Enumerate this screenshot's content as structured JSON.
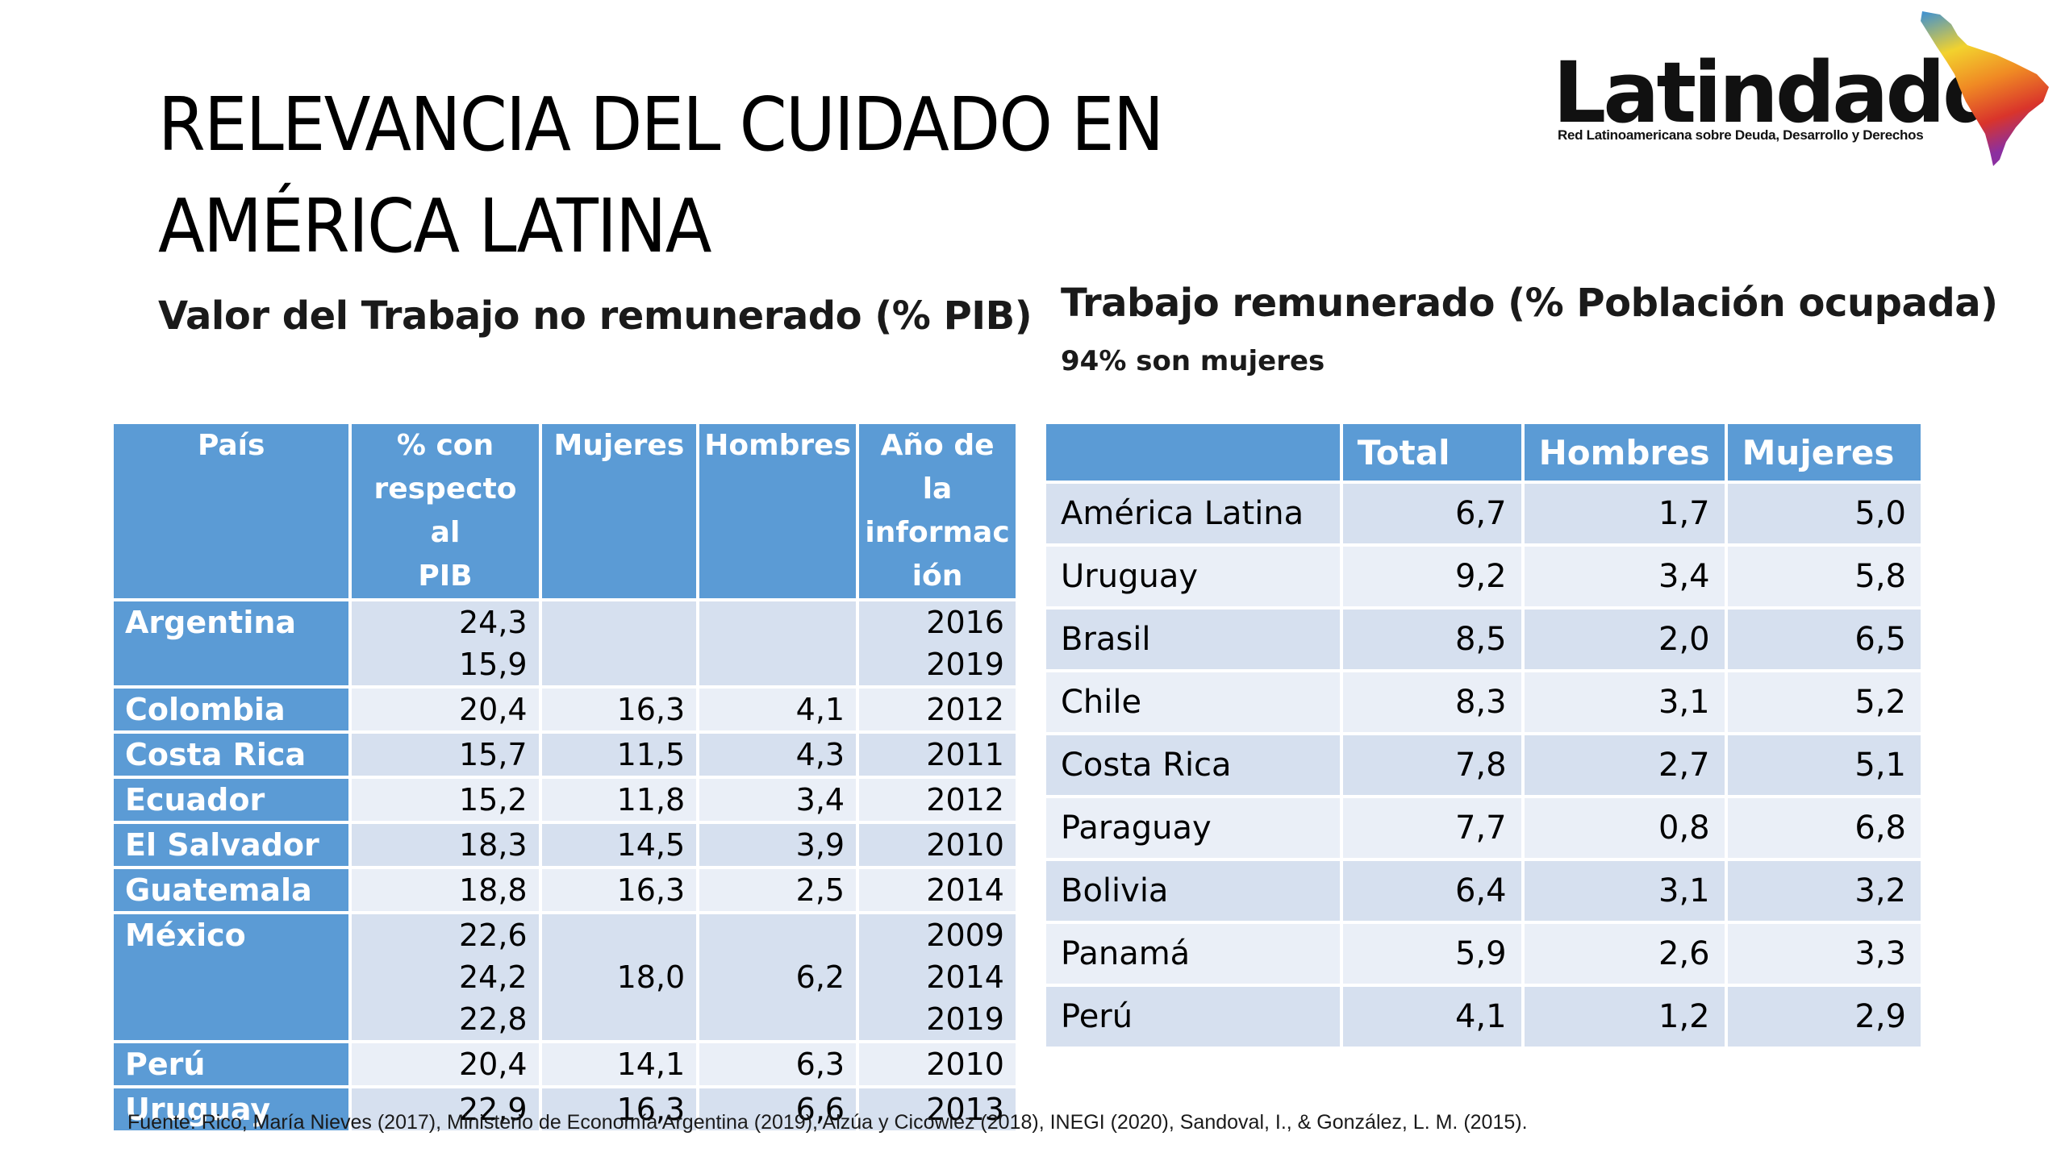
{
  "slide": {
    "title_line1": "RELEVANCIA DEL CUIDADO EN",
    "title_line2": "AMÉRICA LATINA",
    "logo": {
      "name": "Latindadd",
      "tagline": "Red Latinoamericana sobre Deuda, Desarrollo y Derechos"
    },
    "left_subtitle": "Valor del Trabajo no remunerado (% PIB)",
    "right_subtitle": "Trabajo remunerado (% Población ocupada)",
    "right_note": "94% son mujeres",
    "source": "Fuente: Rico, María Nieves (2017), Ministerio de Economía Argentina (2019), Alzúa y Cicowiez (2018), INEGI (2020), Sandoval, I., & González, L. M. (2015)."
  },
  "unpaid_table": {
    "headers": {
      "country": "País",
      "pct_line1": "% con",
      "pct_line2": "respecto al",
      "pct_line3": "PIB",
      "women": "Mujeres",
      "men": "Hombres",
      "year_line1": "Año de la",
      "year_line2": "informac",
      "year_line3": "ión"
    },
    "rows": [
      {
        "country": "Argentina",
        "pct": [
          "24,3",
          "15,9"
        ],
        "women": "",
        "men": "",
        "year": [
          "2016",
          "2019"
        ]
      },
      {
        "country": "Colombia",
        "pct": [
          "20,4"
        ],
        "women": "16,3",
        "men": "4,1",
        "year": [
          "2012"
        ]
      },
      {
        "country": "Costa Rica",
        "pct": [
          "15,7"
        ],
        "women": "11,5",
        "men": "4,3",
        "year": [
          "2011"
        ]
      },
      {
        "country": "Ecuador",
        "pct": [
          "15,2"
        ],
        "women": "11,8",
        "men": "3,4",
        "year": [
          "2012"
        ]
      },
      {
        "country": "El Salvador",
        "pct": [
          "18,3"
        ],
        "women": "14,5",
        "men": "3,9",
        "year": [
          "2010"
        ]
      },
      {
        "country": "Guatemala",
        "pct": [
          "18,8"
        ],
        "women": "16,3",
        "men": "2,5",
        "year": [
          "2014"
        ]
      },
      {
        "country": "México",
        "pct": [
          "22,6",
          "24,2",
          "22,8"
        ],
        "women": "18,0",
        "men": "6,2",
        "year": [
          "2009",
          "2014",
          "2019"
        ]
      },
      {
        "country": "Perú",
        "pct": [
          "20,4"
        ],
        "women": "14,1",
        "men": "6,3",
        "year": [
          "2010"
        ]
      },
      {
        "country": "Uruguay",
        "pct": [
          "22,9"
        ],
        "women": "16,3",
        "men": "6,6",
        "year": [
          "2013"
        ]
      }
    ]
  },
  "paid_table": {
    "headers": {
      "country": "",
      "total": "Total",
      "men": "Hombres",
      "women": "Mujeres"
    },
    "rows": [
      {
        "country": "América Latina",
        "total": "6,7",
        "men": "1,7",
        "women": "5,0"
      },
      {
        "country": "Uruguay",
        "total": "9,2",
        "men": "3,4",
        "women": "5,8"
      },
      {
        "country": "Brasil",
        "total": "8,5",
        "men": "2,0",
        "women": "6,5"
      },
      {
        "country": "Chile",
        "total": "8,3",
        "men": "3,1",
        "women": "5,2"
      },
      {
        "country": "Costa Rica",
        "total": "7,8",
        "men": "2,7",
        "women": "5,1"
      },
      {
        "country": "Paraguay",
        "total": "7,7",
        "men": "0,8",
        "women": "6,8"
      },
      {
        "country": "Bolivia",
        "total": "6,4",
        "men": "3,1",
        "women": "3,2"
      },
      {
        "country": "Panamá",
        "total": "5,9",
        "men": "2,6",
        "women": "3,3"
      },
      {
        "country": "Perú",
        "total": "4,1",
        "men": "1,2",
        "women": "2,9"
      }
    ]
  }
}
